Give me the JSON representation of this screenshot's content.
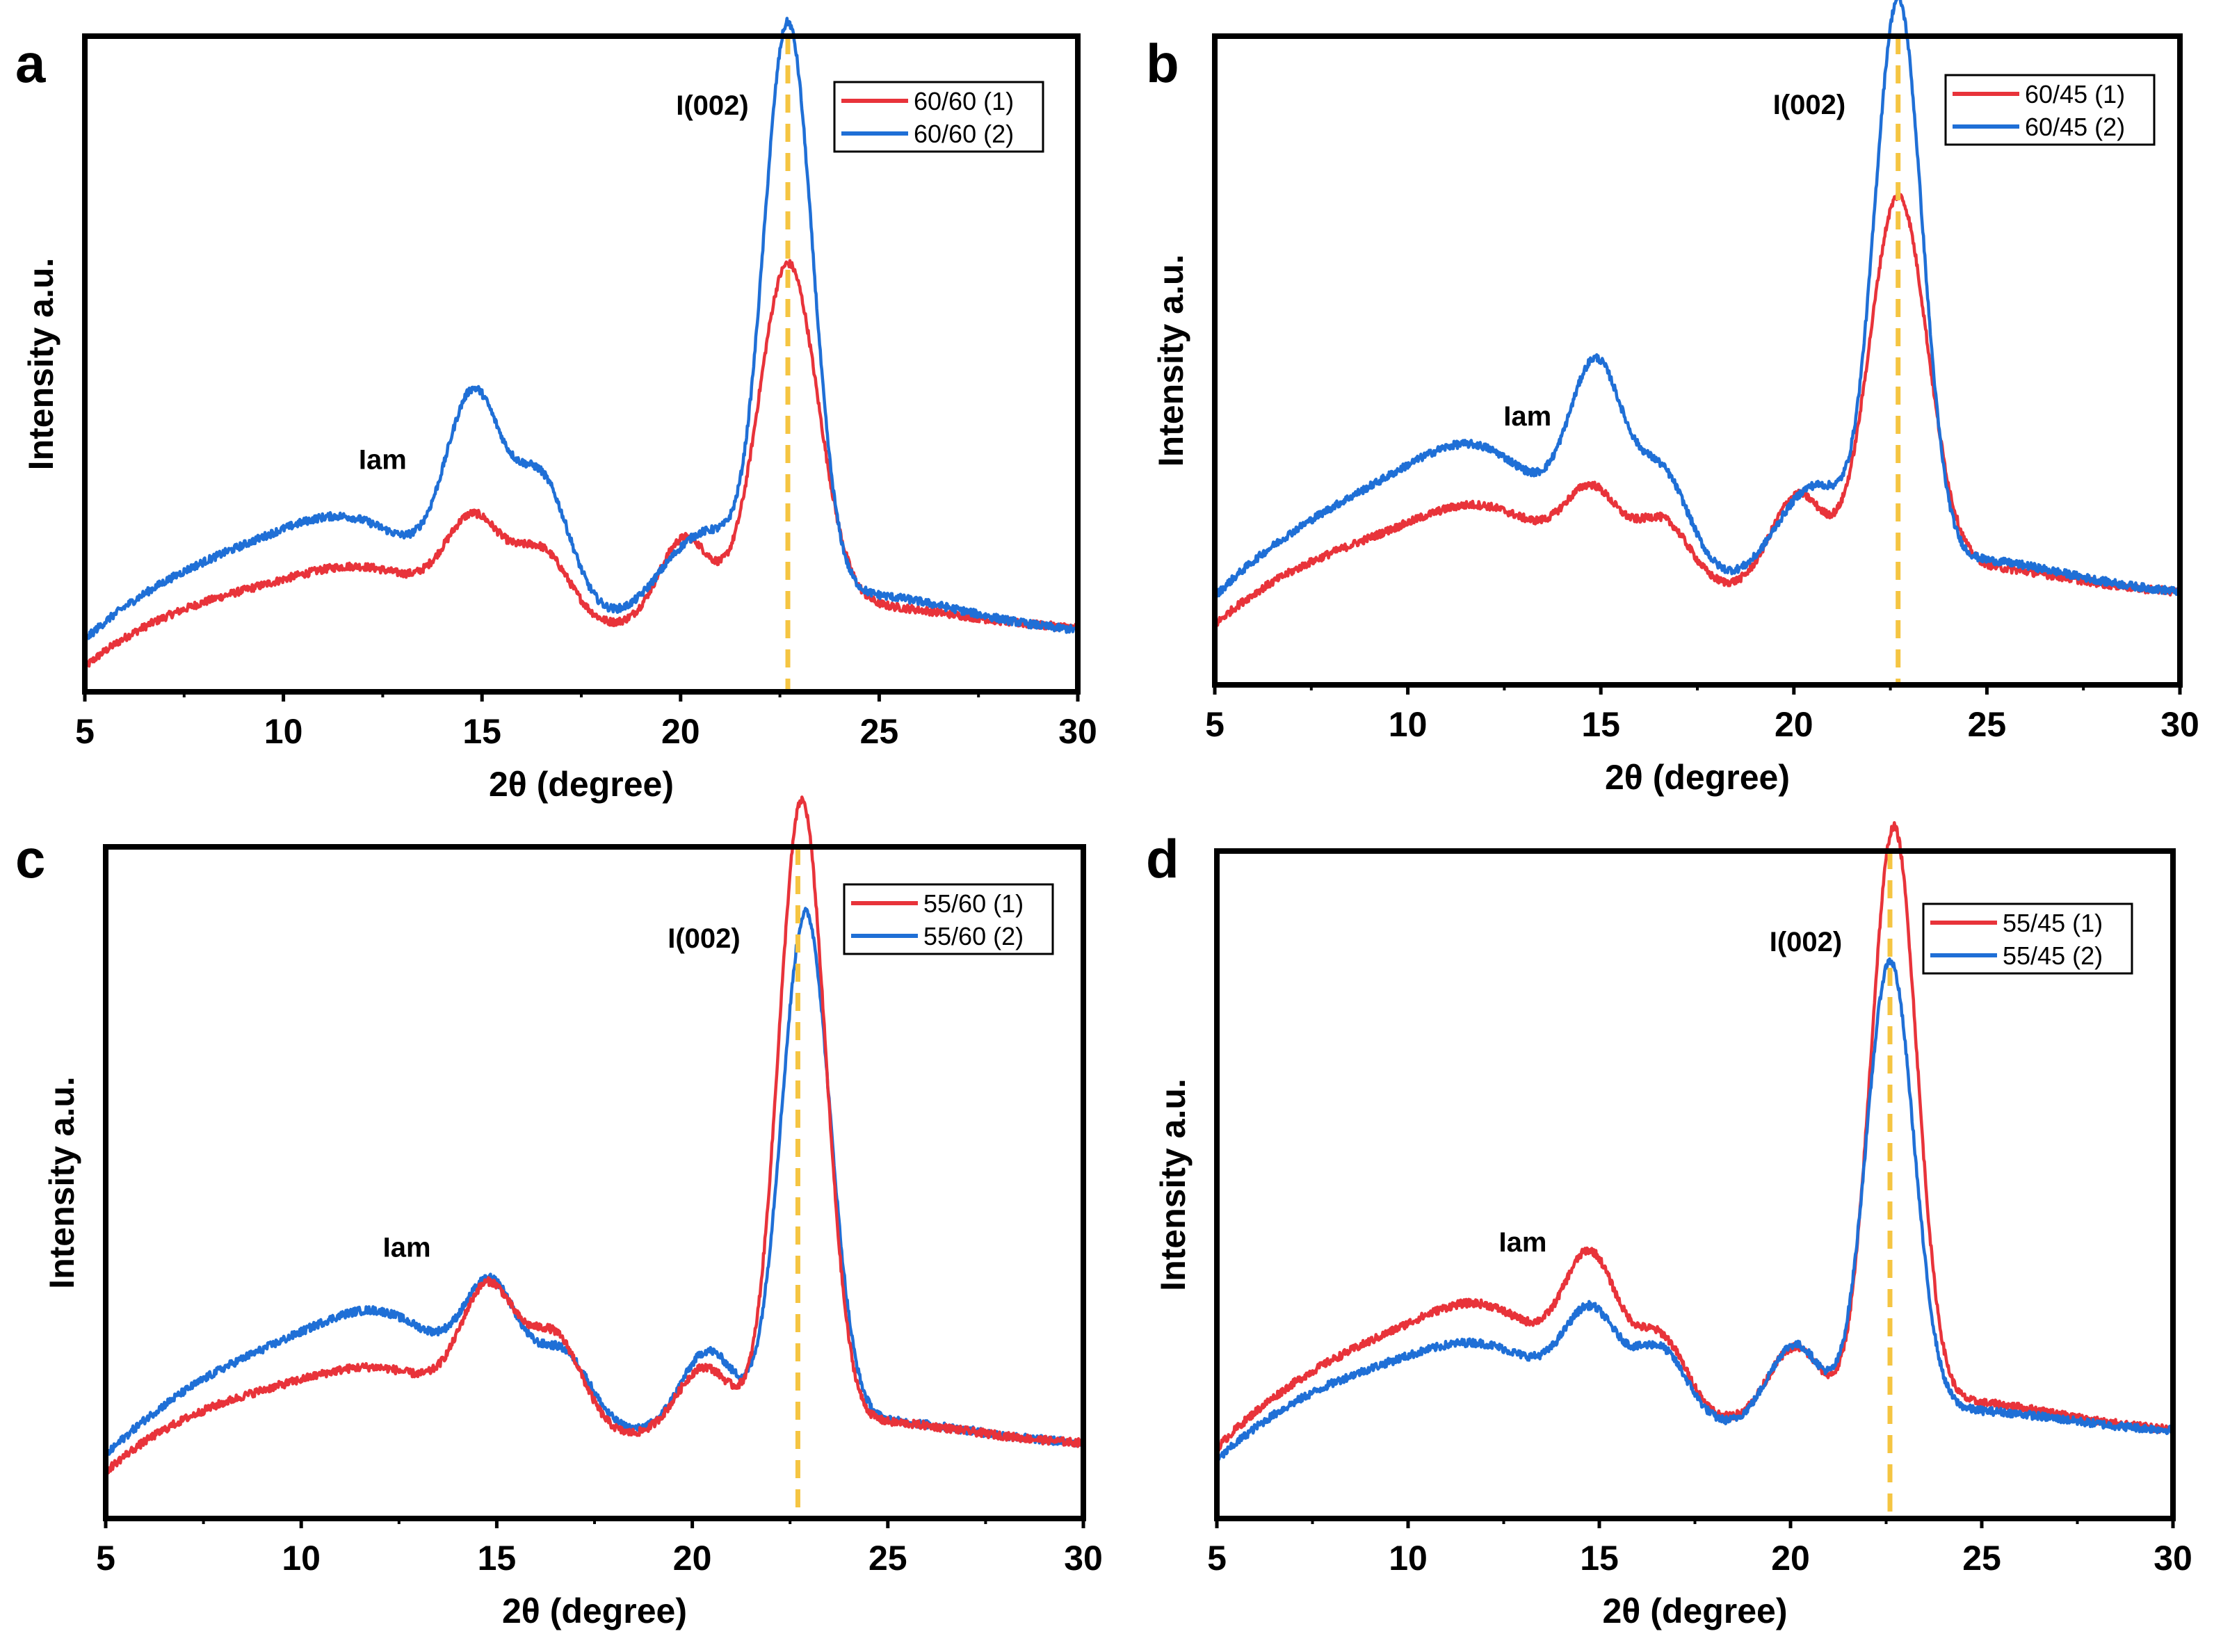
{
  "figure": {
    "description_free": true
  },
  "colors": {
    "series_1": "#e8333a",
    "series_2": "#1f6fd6",
    "reference_line": "#f5c542",
    "axis": "#000000"
  },
  "chart_data": [
    {
      "panel_label": "a",
      "type": "line",
      "xlabel": "2θ (degree)",
      "ylabel": "Intensity a.u.",
      "xlim": [
        5,
        30
      ],
      "ylim": [
        0,
        100
      ],
      "x_ticks": [
        5,
        10,
        15,
        20,
        25,
        30
      ],
      "y_ticks_shown": false,
      "grid": false,
      "legend_position": "top-right",
      "reference_line_x": 22.7,
      "annotations": [
        {
          "text": "I(002)",
          "x": 20.8,
          "y": 88
        },
        {
          "text": "Iam",
          "x": 12.5,
          "y": 34
        }
      ],
      "draw_order": [
        0,
        1
      ],
      "series": [
        {
          "name": "60/60 (1)",
          "color": "#e8333a",
          "baseline": {
            "x0": 5,
            "y0": 10,
            "x1": 30,
            "y1": 9.5,
            "pts": [
              [
                5,
                12
              ],
              [
                6.5,
                17
              ],
              [
                8,
                21
              ],
              [
                9.5,
                23
              ],
              [
                11,
                23
              ],
              [
                12.5,
                22
              ]
            ]
          },
          "peaks": [
            [
              9.7,
              6,
              3.0
            ],
            [
              12.3,
              5,
              1.6
            ],
            [
              14.8,
              14,
              0.7
            ],
            [
              16.5,
              11,
              0.7
            ],
            [
              20.1,
              13,
              0.65
            ],
            [
              22.7,
              53,
              0.75
            ]
          ],
          "extra_wide": [
            [
              24.5,
              3.5,
              2.5
            ]
          ]
        },
        {
          "name": "60/60 (2)",
          "color": "#1f6fd6",
          "baseline": {
            "x0": 5,
            "y0": 13,
            "x1": 30,
            "y1": 9
          },
          "peaks": [
            [
              9.7,
              10,
              3.0
            ],
            [
              12.0,
              7,
              1.6
            ],
            [
              14.8,
              30,
              0.7
            ],
            [
              16.5,
              20,
              0.7
            ],
            [
              20.1,
              9,
              0.8
            ],
            [
              21.0,
              6,
              0.6
            ],
            [
              22.7,
              88,
              0.62
            ]
          ],
          "extra_wide": [
            [
              24.5,
              5,
              2.5
            ]
          ]
        }
      ]
    },
    {
      "panel_label": "b",
      "type": "line",
      "xlabel": "2θ (degree)",
      "ylabel": "Intensity a.u.",
      "xlim": [
        5,
        30
      ],
      "ylim": [
        0,
        100
      ],
      "x_ticks": [
        5,
        10,
        15,
        20,
        25,
        30
      ],
      "y_ticks_shown": false,
      "grid": false,
      "legend_position": "top-right",
      "reference_line_x": 22.7,
      "annotations": [
        {
          "text": "I(002)",
          "x": 20.4,
          "y": 88
        },
        {
          "text": "Iam",
          "x": 13.1,
          "y": 40
        }
      ],
      "draw_order": [
        0,
        1
      ],
      "series": [
        {
          "name": "60/45 (1)",
          "color": "#e8333a",
          "baseline": {
            "x0": 5,
            "y0": 15,
            "x1": 30,
            "y1": 14
          },
          "peaks": [
            [
              9.8,
              8,
              3.0
            ],
            [
              12.2,
              7,
              1.6
            ],
            [
              14.8,
              12,
              0.7
            ],
            [
              16.6,
              10,
              0.7
            ],
            [
              20.1,
              14,
              0.7
            ],
            [
              22.7,
              58,
              0.75
            ]
          ],
          "extra_wide": [
            [
              24.5,
              4,
              2.5
            ]
          ]
        },
        {
          "name": "60/45 (2)",
          "color": "#1f6fd6",
          "baseline": {
            "x0": 5,
            "y0": 18,
            "x1": 30,
            "y1": 14
          },
          "peaks": [
            [
              9.8,
              13,
              3.0
            ],
            [
              12.1,
              10,
              1.6
            ],
            [
              14.9,
              28,
              0.7
            ],
            [
              16.6,
              15,
              0.7
            ],
            [
              20.2,
              11,
              0.8
            ],
            [
              21.0,
              5,
              0.6
            ],
            [
              22.7,
              87,
              0.62
            ]
          ],
          "extra_wide": [
            [
              24.5,
              4.5,
              2.5
            ]
          ]
        }
      ]
    },
    {
      "panel_label": "c",
      "type": "line",
      "xlabel": "2θ  (degree)",
      "ylabel": "Intensity a.u.",
      "xlim": [
        5,
        30
      ],
      "ylim": [
        0,
        100
      ],
      "x_ticks": [
        5,
        10,
        15,
        20,
        25,
        30
      ],
      "y_ticks_shown": false,
      "grid": false,
      "legend_position": "top-right",
      "reference_line_x": 22.7,
      "annotations": [
        {
          "text": "I(002)",
          "x": 20.3,
          "y": 85
        },
        {
          "text": "Iam",
          "x": 12.7,
          "y": 39
        }
      ],
      "draw_order": [
        1,
        0
      ],
      "series": [
        {
          "name": "55/60 (1)",
          "color": "#e8333a",
          "baseline": {
            "x0": 5,
            "y0": 13,
            "x1": 30,
            "y1": 11
          },
          "peaks": [
            [
              9.8,
              7,
              3.0
            ],
            [
              12.4,
              5,
              1.6
            ],
            [
              14.8,
              19,
              0.7
            ],
            [
              16.5,
              14,
              0.7
            ],
            [
              20.3,
              10,
              0.7
            ],
            [
              22.8,
              93,
              0.6
            ]
          ],
          "extra_wide": [
            [
              24.5,
              3,
              2.5
            ]
          ]
        },
        {
          "name": "55/60 (2)",
          "color": "#1f6fd6",
          "baseline": {
            "x0": 5,
            "y0": 14,
            "x1": 30,
            "y1": 11
          },
          "peaks": [
            [
              9.8,
              12,
              3.0
            ],
            [
              12.4,
              9,
              1.6
            ],
            [
              14.9,
              17,
              0.7
            ],
            [
              16.7,
              11,
              0.7
            ],
            [
              20.4,
              12,
              0.7
            ],
            [
              22.9,
              76,
              0.62
            ]
          ],
          "extra_wide": [
            [
              24.5,
              3,
              2.5
            ]
          ]
        }
      ]
    },
    {
      "panel_label": "d",
      "type": "line",
      "xlabel": "2θ (degree)",
      "ylabel": "Intensity a.u.",
      "xlim": [
        5,
        30
      ],
      "ylim": [
        0,
        100
      ],
      "x_ticks": [
        5,
        10,
        15,
        20,
        25,
        30
      ],
      "y_ticks_shown": false,
      "grid": false,
      "legend_position": "top-right",
      "reference_line_x": 22.6,
      "annotations": [
        {
          "text": "I(002)",
          "x": 20.4,
          "y": 85
        },
        {
          "text": "Iam",
          "x": 13.0,
          "y": 40
        }
      ],
      "draw_order": [
        0,
        1
      ],
      "series": [
        {
          "name": "55/45 (1)",
          "color": "#e8333a",
          "baseline": {
            "x0": 5,
            "y0": 15,
            "x1": 30,
            "y1": 13
          },
          "peaks": [
            [
              9.7,
              12,
              3.0
            ],
            [
              12.3,
              9,
              1.6
            ],
            [
              14.8,
              20,
              0.7
            ],
            [
              16.6,
              12,
              0.7
            ],
            [
              20.1,
              11,
              0.7
            ],
            [
              22.7,
              87,
              0.6
            ]
          ],
          "extra_wide": [
            [
              24.5,
              4,
              2.5
            ]
          ]
        },
        {
          "name": "55/45 (2)",
          "color": "#1f6fd6",
          "baseline": {
            "x0": 5,
            "y0": 14,
            "x1": 30,
            "y1": 13
          },
          "peaks": [
            [
              9.7,
              9,
              3.0
            ],
            [
              12.3,
              6,
              1.6
            ],
            [
              14.8,
              14,
              0.7
            ],
            [
              16.6,
              11,
              0.7
            ],
            [
              20.1,
              12,
              0.7
            ],
            [
              22.6,
              68,
              0.62
            ]
          ],
          "extra_wide": [
            [
              24.5,
              3,
              2.5
            ]
          ]
        }
      ]
    }
  ]
}
